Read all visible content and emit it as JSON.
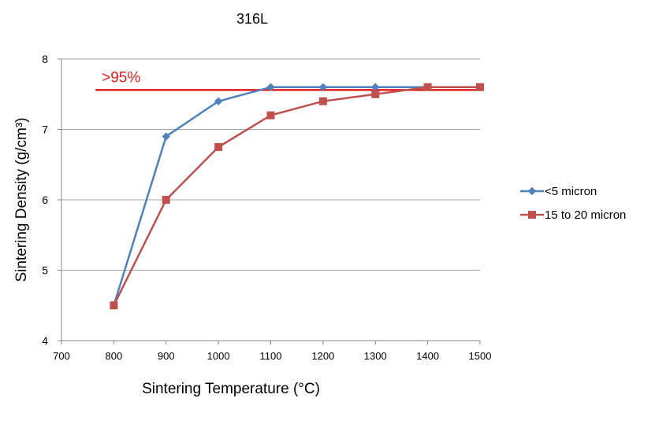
{
  "chart_data": {
    "type": "line",
    "title": "316L",
    "xlabel": "Sintering Temperature (°C)",
    "ylabel": "Sintering Density (g/cm³)",
    "xlim": [
      700,
      1500
    ],
    "ylim": [
      4,
      8
    ],
    "x_ticks": [
      "700",
      "800",
      "900",
      "1000",
      "1100",
      "1200",
      "1300",
      "1400",
      "1500"
    ],
    "y_ticks": [
      "4",
      "5",
      "6",
      "7",
      "8"
    ],
    "grid": "horizontal",
    "legend_position": "right",
    "series": [
      {
        "name": "<5 micron",
        "color": "#4F81BD",
        "marker": "diamond",
        "x": [
          800,
          900,
          1000,
          1100,
          1200,
          1300,
          1400,
          1500
        ],
        "y": [
          4.5,
          6.9,
          7.4,
          7.6,
          7.6,
          7.6,
          7.6,
          7.6
        ]
      },
      {
        "name": "15 to 20 micron",
        "color": "#C0504D",
        "marker": "square",
        "x": [
          800,
          900,
          1000,
          1100,
          1200,
          1300,
          1400,
          1500
        ],
        "y": [
          4.5,
          6.0,
          6.75,
          7.2,
          7.4,
          7.5,
          7.6,
          7.6
        ]
      }
    ],
    "reference_line": {
      "label": ">95%",
      "y": 7.56,
      "x_start": 765,
      "x_end": 1500,
      "color": "#E31A1C"
    }
  }
}
